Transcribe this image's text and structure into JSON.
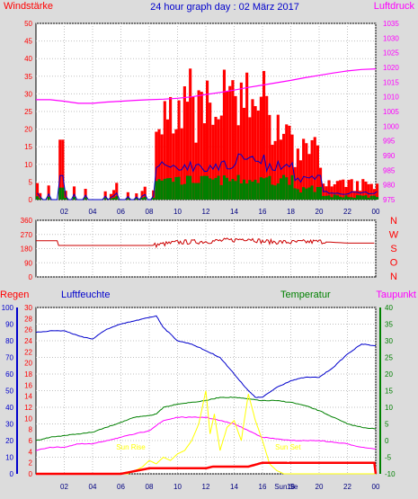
{
  "chart_data": [
    {
      "panel": "wind",
      "type": "bar",
      "title": "24 hour graph day : 02 März 2017",
      "ylabel_left": "Windstärke",
      "ylabel_right": "Luftdruck",
      "ylim_left": [
        0,
        50
      ],
      "yticks_left": [
        "0",
        "5",
        "10",
        "15",
        "20",
        "25",
        "30",
        "35",
        "40",
        "45",
        "50"
      ],
      "ylim_right": [
        975,
        1035
      ],
      "yticks_right": [
        "975",
        "980",
        "985",
        "990",
        "995",
        "1000",
        "1005",
        "1010",
        "1015",
        "1020",
        "1025",
        "1030",
        "1035"
      ],
      "xlim": [
        0,
        24
      ],
      "xticks": [
        "02",
        "04",
        "06",
        "08",
        "10",
        "12",
        "14",
        "16",
        "18",
        "20",
        "22",
        "00"
      ],
      "grid": true,
      "colors": {
        "gust": "#ff0000",
        "wind": "#0000cc",
        "avg": "#008000",
        "pressure": "#ff00ff"
      },
      "pressure_x": [
        0,
        1,
        2,
        3,
        4,
        5,
        6,
        7,
        8,
        9,
        10,
        11,
        12,
        13,
        14,
        15,
        16,
        17,
        18,
        19,
        20,
        21,
        22,
        23,
        24
      ],
      "pressure_values": [
        1009,
        1009,
        1008.5,
        1007.8,
        1007.8,
        1008.2,
        1008.5,
        1008.8,
        1009,
        1009.2,
        1009.5,
        1010,
        1010.8,
        1011.5,
        1012.3,
        1013.2,
        1014,
        1014.8,
        1015.6,
        1016.5,
        1017.3,
        1018.1,
        1018.8,
        1019.3,
        1019.5
      ]
    },
    {
      "panel": "direction",
      "type": "line",
      "ylabel_right": [
        "N",
        "W",
        "S",
        "O",
        "N"
      ],
      "ylim": [
        0,
        360
      ],
      "yticks": [
        "0",
        "90",
        "180",
        "270",
        "360"
      ],
      "xlim": [
        0,
        24
      ],
      "grid": true,
      "color": "#cc0000",
      "x": [
        0,
        1.5,
        1.6,
        8.2,
        10,
        12,
        14,
        15,
        16,
        18,
        20,
        21,
        22,
        24
      ],
      "values": [
        230,
        230,
        200,
        200,
        220,
        225,
        235,
        245,
        225,
        220,
        225,
        220,
        215,
        215
      ]
    },
    {
      "panel": "rain-humidity-temperature",
      "type": "line",
      "ylabel_left_1": "Regen",
      "ylabel_left_2": "Luftfeuchte",
      "ylabel_right_1": "Temperatur",
      "ylabel_right_2": "Taupunkt",
      "yticks_rain": [
        "0",
        "2",
        "4",
        "6",
        "8",
        "10",
        "12",
        "14",
        "16",
        "18",
        "20",
        "22",
        "24",
        "26",
        "28",
        "30"
      ],
      "yticks_humidity": [
        "0",
        "10",
        "20",
        "30",
        "40",
        "50",
        "60",
        "70",
        "80",
        "90",
        "100"
      ],
      "yticks_temperature": [
        "-10",
        "-5",
        "0",
        "5",
        "10",
        "15",
        "20",
        "25",
        "30",
        "35",
        "40"
      ],
      "ylim_temperature": [
        -10,
        40
      ],
      "xticks": [
        "02",
        "04",
        "06",
        "08",
        "10",
        "12",
        "14",
        "16",
        "18",
        "20",
        "22",
        "00"
      ],
      "xlim": [
        0,
        24
      ],
      "grid": true,
      "annotations": [
        "Sun Rise",
        "Sun Set"
      ],
      "annotation_x": [
        6.7,
        17.8
      ],
      "extra_xlabel": "Sun Se",
      "series": [
        {
          "key": "humidity",
          "color": "#0000cc",
          "x": [
            0,
            1,
            2,
            3,
            4,
            5,
            6,
            7,
            8,
            8.5,
            9,
            10,
            11,
            12,
            13,
            14,
            15,
            15.5,
            16,
            17,
            18,
            19,
            20,
            21,
            22,
            23,
            24
          ],
          "values": [
            85,
            86,
            86,
            83,
            81,
            87,
            90,
            92,
            94,
            95,
            88,
            80,
            78,
            74,
            70,
            60,
            50,
            46,
            46,
            52,
            56,
            58,
            58,
            64,
            72,
            78,
            77
          ]
        },
        {
          "key": "temperature",
          "color": "#008000",
          "x": [
            0,
            1,
            2,
            3,
            4,
            5,
            6,
            7,
            8,
            8.5,
            9,
            10,
            11,
            12,
            13,
            14,
            15,
            16,
            17,
            18,
            19,
            20,
            21,
            22,
            23,
            24
          ],
          "values": [
            0,
            1,
            1.5,
            2,
            2.5,
            4,
            5.5,
            7,
            7.5,
            8,
            10,
            11,
            11.5,
            12,
            13,
            13,
            12.5,
            12,
            12,
            11.5,
            10.5,
            9,
            7,
            5,
            4,
            3.5
          ]
        },
        {
          "key": "dewpoint",
          "color": "#ff00ff",
          "x": [
            0,
            1,
            2,
            3,
            4,
            5,
            6,
            7,
            8,
            9,
            10,
            11,
            12,
            13,
            14,
            15,
            16,
            17,
            18,
            19,
            20,
            21,
            22,
            23,
            24
          ],
          "values": [
            -3,
            -2,
            -2,
            -1,
            -1,
            0,
            1,
            2,
            3,
            6,
            7,
            7,
            7,
            6,
            5,
            3,
            1,
            0.5,
            0,
            0,
            0,
            -0.5,
            -1,
            -2,
            -2.5
          ]
        },
        {
          "key": "solar",
          "color": "#ffff00",
          "x": [
            0,
            6.5,
            7,
            7.5,
            8,
            8.5,
            9,
            9.5,
            10,
            10.5,
            11,
            11.5,
            12,
            12.3,
            12.6,
            13,
            13.5,
            14,
            14.5,
            15,
            15.5,
            16,
            16.5,
            17,
            17.5,
            24
          ],
          "values": [
            -10,
            -10,
            -9,
            -8,
            -6,
            -7,
            -5,
            -6,
            -4,
            -3,
            0,
            5,
            15,
            2,
            8,
            -3,
            4,
            6,
            0,
            14,
            6,
            0,
            -7,
            -9,
            -10,
            -10
          ]
        },
        {
          "key": "rain",
          "color": "#ff0000",
          "x": [
            0,
            6,
            8,
            12,
            12.5,
            15,
            16,
            16.5,
            18,
            20,
            23.9,
            24
          ],
          "values": [
            0,
            0,
            1,
            1,
            1.3,
            1.3,
            2,
            2,
            2,
            2,
            2,
            0
          ]
        }
      ]
    }
  ]
}
